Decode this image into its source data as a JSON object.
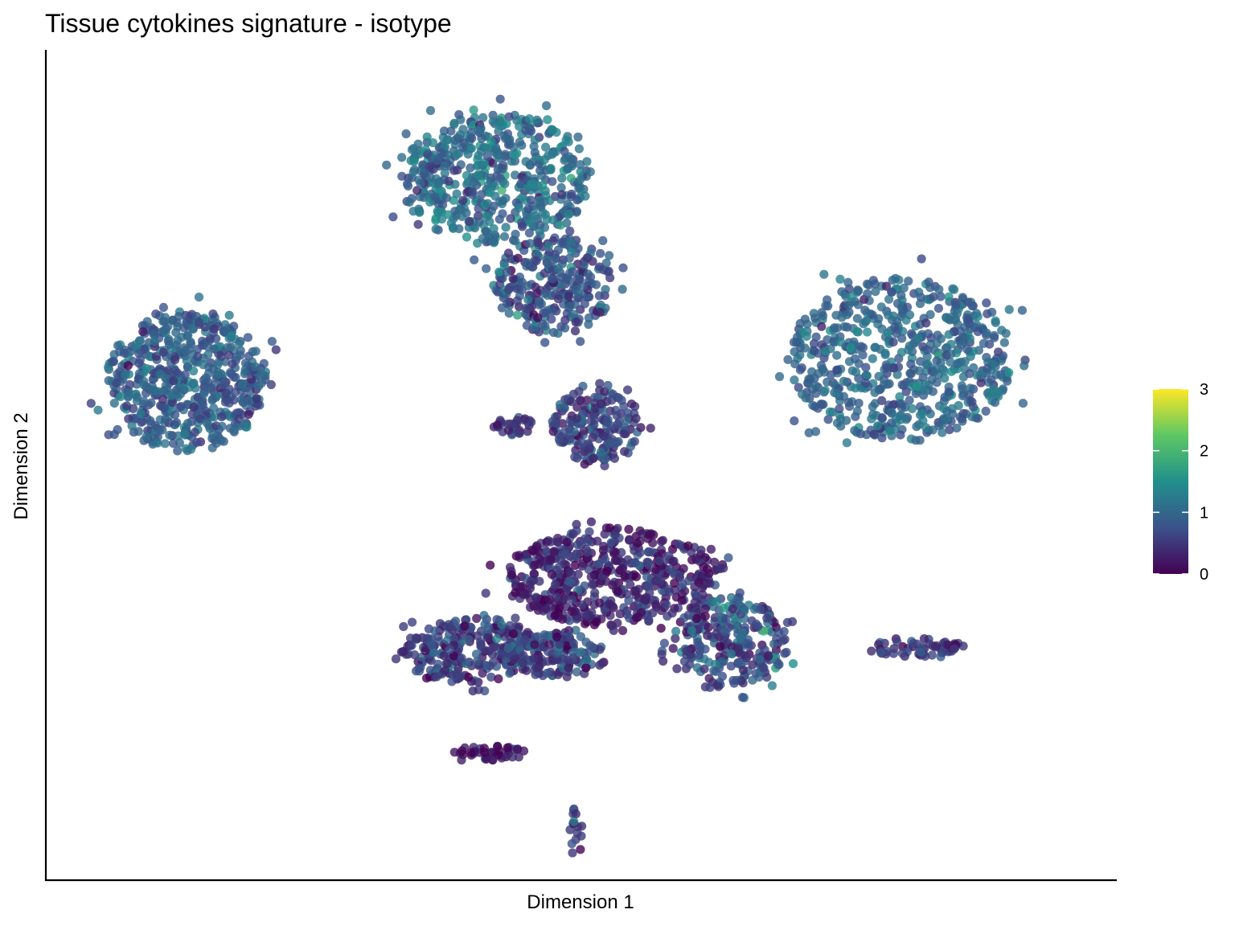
{
  "chart_data": {
    "type": "scatter",
    "title": "Tissue cytokines signature - isotype",
    "xlabel": "Dimension 1",
    "ylabel": "Dimension 2",
    "xlim": [
      0,
      100
    ],
    "ylim": [
      0,
      100
    ],
    "x_ticks_shown": false,
    "y_ticks_shown": false,
    "grid": false,
    "legend_position": "right",
    "point_opacity": 0.8,
    "color_scale": {
      "name": "viridis",
      "range": [
        0,
        3
      ],
      "ticks": [
        0,
        1,
        2,
        3
      ],
      "tick_labels": [
        "0",
        "1",
        "2",
        "3"
      ],
      "colors": [
        "#440154",
        "#3b528b",
        "#21908c",
        "#5dc863",
        "#fde725"
      ]
    },
    "clusters": [
      {
        "id": "left-cluster",
        "cx": 13.0,
        "cy": 60.5,
        "rx": 7.5,
        "ry": 8.8,
        "n": 560,
        "mean": 0.9,
        "sd": 0.25
      },
      {
        "id": "top-cluster-upper",
        "cx": 42.0,
        "cy": 85.0,
        "rx": 9.0,
        "ry": 8.0,
        "n": 520,
        "mean": 1.05,
        "sd": 0.3
      },
      {
        "id": "top-cluster-lower",
        "cx": 47.5,
        "cy": 72.0,
        "rx": 5.5,
        "ry": 6.0,
        "n": 260,
        "mean": 0.75,
        "sd": 0.3
      },
      {
        "id": "center-cluster",
        "cx": 51.5,
        "cy": 55.0,
        "rx": 4.2,
        "ry": 4.5,
        "n": 190,
        "mean": 0.65,
        "sd": 0.25
      },
      {
        "id": "center-small",
        "cx": 43.5,
        "cy": 55.0,
        "rx": 2.0,
        "ry": 1.2,
        "n": 30,
        "mean": 0.5,
        "sd": 0.2
      },
      {
        "id": "right-cluster",
        "cx": 80.0,
        "cy": 63.0,
        "rx": 10.5,
        "ry": 10.0,
        "n": 620,
        "mean": 1.0,
        "sd": 0.22
      },
      {
        "id": "bottom-main",
        "cx": 53.0,
        "cy": 36.5,
        "rx": 10.0,
        "ry": 6.0,
        "n": 520,
        "mean": 0.35,
        "sd": 0.25
      },
      {
        "id": "bottom-left",
        "cx": 40.0,
        "cy": 27.5,
        "rx": 7.0,
        "ry": 4.0,
        "n": 260,
        "mean": 0.55,
        "sd": 0.3
      },
      {
        "id": "bottom-middle",
        "cx": 47.5,
        "cy": 27.0,
        "rx": 5.0,
        "ry": 2.8,
        "n": 160,
        "mean": 0.6,
        "sd": 0.3
      },
      {
        "id": "bottom-right",
        "cx": 64.0,
        "cy": 28.5,
        "rx": 5.5,
        "ry": 5.5,
        "n": 260,
        "mean": 0.75,
        "sd": 0.35
      },
      {
        "id": "right-tail",
        "cx": 81.5,
        "cy": 27.8,
        "rx": 4.5,
        "ry": 1.2,
        "n": 60,
        "mean": 0.5,
        "sd": 0.2
      },
      {
        "id": "bottom-island",
        "cx": 41.5,
        "cy": 15.0,
        "rx": 3.5,
        "ry": 0.9,
        "n": 40,
        "mean": 0.3,
        "sd": 0.2
      },
      {
        "id": "bottom-tip",
        "cx": 49.5,
        "cy": 5.5,
        "rx": 0.7,
        "ry": 3.0,
        "n": 16,
        "mean": 0.6,
        "sd": 0.2
      }
    ]
  }
}
